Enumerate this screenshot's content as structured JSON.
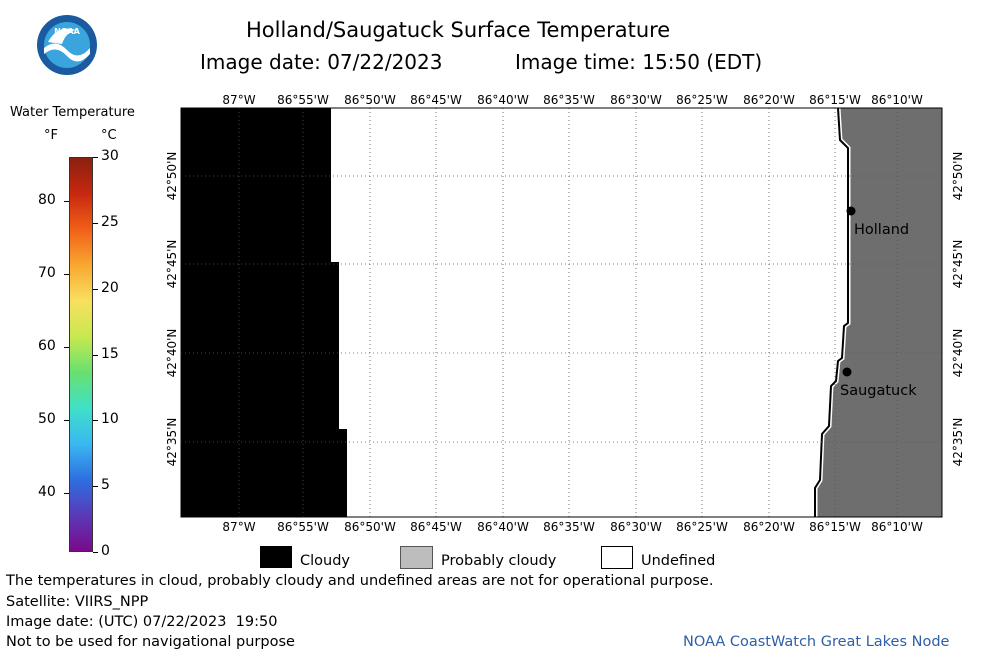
{
  "logo": {
    "text": "NOAA",
    "colors": {
      "outer": "#1b5aa0",
      "inner": "#3aa5dd",
      "wave": "#ffffff"
    }
  },
  "header": {
    "title": "Holland/Saugatuck Surface Temperature",
    "image_date": "Image date: 07/22/2023",
    "image_time": "Image time: 15:50 (EDT)"
  },
  "colorbar": {
    "title": "Water Temperature",
    "unit_f": "°F",
    "unit_c": "°C",
    "f_ticks": [
      "80",
      "70",
      "60",
      "50",
      "40"
    ],
    "c_ticks": [
      "30",
      "25",
      "20",
      "15",
      "10",
      "5",
      "0"
    ],
    "colors": [
      "#7a0a8a",
      "#5a3ab8",
      "#2e6fe0",
      "#3ab8f0",
      "#40e0c8",
      "#68e070",
      "#c8e850",
      "#f8e060",
      "#f8a830",
      "#f06018",
      "#c82810",
      "#8a2010"
    ]
  },
  "map": {
    "lon_labels": [
      "87°W",
      "86°55'W",
      "86°50'W",
      "86°45'W",
      "86°40'W",
      "86°35'W",
      "86°30'W",
      "86°25'W",
      "86°20'W",
      "86°15'W",
      "86°10'W"
    ],
    "lat_labels": [
      "42°50'N",
      "42°45'N",
      "42°40'N",
      "42°35'N"
    ],
    "cities": [
      {
        "name": "Holland"
      },
      {
        "name": "Saugatuck"
      }
    ],
    "colors": {
      "cloudy": "#000000",
      "land": "#6e6e6e",
      "undefined": "#ffffff",
      "grid": "#555555"
    }
  },
  "legend": {
    "cloudy": "Cloudy",
    "probably_cloudy": "Probably cloudy",
    "undefined": "Undefined",
    "colors": {
      "cloudy": "#000000",
      "probably_cloudy": "#bdbdbd",
      "undefined": "#ffffff"
    }
  },
  "footer": {
    "disclaimer": "The temperatures in cloud, probably cloudy and undefined areas are not for operational purpose.",
    "satellite": "Satellite: VIIRS_NPP",
    "utc_date": "Image date: (UTC) 07/22/2023  19:50",
    "nav_warning": "Not to be used for navigational purpose",
    "credit": "NOAA CoastWatch Great Lakes Node"
  }
}
